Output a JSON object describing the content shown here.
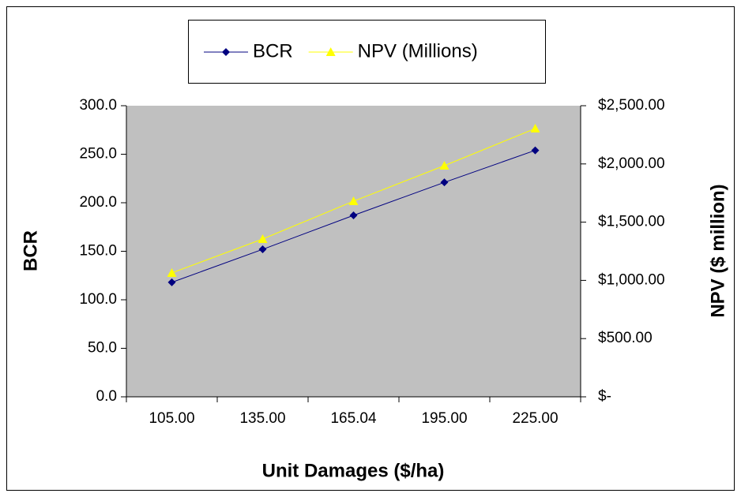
{
  "chart_data": {
    "type": "line",
    "xlabel": "Unit Damages ($/ha)",
    "ylabel": "BCR",
    "y2label": "NPV ($ million)",
    "categories": [
      "105.00",
      "135.00",
      "165.04",
      "195.00",
      "225.00"
    ],
    "series": [
      {
        "name": "BCR",
        "color": "#000080",
        "marker": "diamond",
        "values": [
          118,
          152,
          187,
          221,
          254
        ]
      },
      {
        "name": "NPV (Millions)",
        "color": "#ffff00",
        "marker": "triangle",
        "axis": "y2",
        "values": [
          1064,
          1355,
          1680,
          1985,
          2304
        ]
      }
    ],
    "ylim": [
      0,
      300
    ],
    "yticks": [
      {
        "value": 0,
        "label": "0.0"
      },
      {
        "value": 50,
        "label": "50.0"
      },
      {
        "value": 100,
        "label": "100.0"
      },
      {
        "value": 150,
        "label": "150.0"
      },
      {
        "value": 200,
        "label": "200.0"
      },
      {
        "value": 250,
        "label": "250.0"
      },
      {
        "value": 300,
        "label": "300.0"
      }
    ],
    "y2lim": [
      0,
      2500
    ],
    "y2ticks": [
      {
        "value": 0,
        "label": "$-"
      },
      {
        "value": 500,
        "label": "$500.00"
      },
      {
        "value": 1000,
        "label": "$1,000.00"
      },
      {
        "value": 1500,
        "label": "$1,500.00"
      },
      {
        "value": 2000,
        "label": "$2,000.00"
      },
      {
        "value": 2500,
        "label": "$2,500.00"
      }
    ],
    "legend": "top",
    "plot_background": "#c0c0c0"
  }
}
